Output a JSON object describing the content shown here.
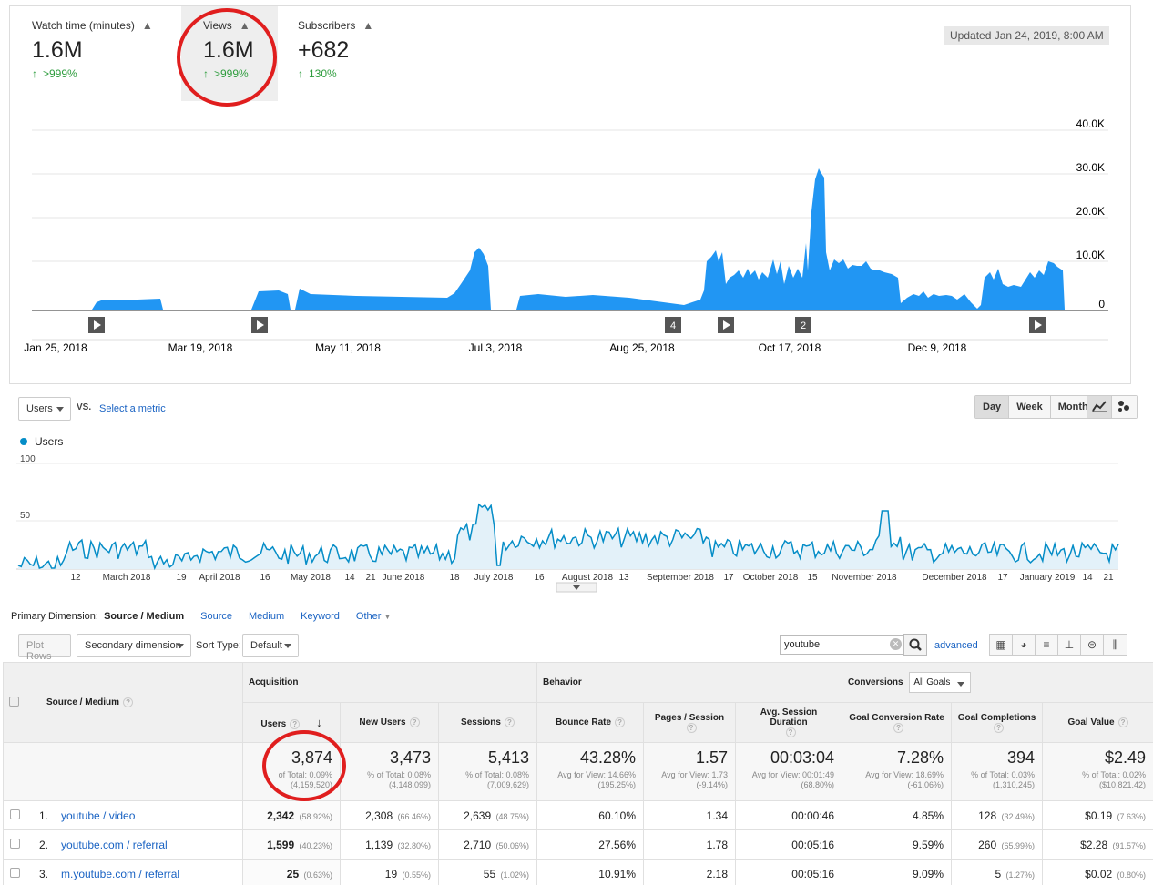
{
  "yt": {
    "metrics": [
      {
        "label": "Watch time (minutes)",
        "value": "1.6M",
        "change": ">999%"
      },
      {
        "label": "Views",
        "value": "1.6M",
        "change": ">999%"
      },
      {
        "label": "Subscribers",
        "value": "+682",
        "change": "130%"
      }
    ],
    "updated": "Updated Jan 24, 2019, 8:00 AM",
    "x_labels": [
      "Jan 25, 2018",
      "Mar 19, 2018",
      "May 11, 2018",
      "Jul 3, 2018",
      "Aug 25, 2018",
      "Oct 17, 2018",
      "Dec 9, 2018"
    ],
    "y_labels": [
      "40.0K",
      "30.0K",
      "20.0K",
      "10.0K",
      "0"
    ],
    "markers": [
      "",
      "",
      "4",
      "",
      "2",
      ""
    ],
    "color": "#2196f3"
  },
  "ga": {
    "metric_select": "Users",
    "vs": "VS.",
    "select_metric": "Select a metric",
    "intervals": [
      "Day",
      "Week",
      "Month"
    ],
    "active_interval": "Day",
    "legend": "Users",
    "y_labels": [
      "100",
      "50"
    ],
    "x_labels": [
      "12",
      "March 2018",
      "19",
      "April 2018",
      "16",
      "May 2018",
      "14",
      "21",
      "June 2018",
      "18",
      "July 2018",
      "16",
      "August 2018",
      "13",
      "September 2018",
      "17",
      "October 2018",
      "15",
      "November 2018",
      "December 2018",
      "17",
      "January 2019",
      "14",
      "21"
    ],
    "line_color": "#058dc7",
    "fill_color": "#e3f1f9"
  },
  "dims": {
    "label": "Primary Dimension:",
    "active": "Source / Medium",
    "others": [
      "Source",
      "Medium",
      "Keyword",
      "Other"
    ]
  },
  "toolbar": {
    "plot_rows": "Plot Rows",
    "secondary": "Secondary dimension",
    "sort_label": "Sort Type:",
    "sort_value": "Default",
    "search_value": "youtube",
    "advanced": "advanced"
  },
  "table": {
    "dim_header": "Source / Medium",
    "groups": {
      "acquisition": "Acquisition",
      "behavior": "Behavior",
      "conversions": "Conversions",
      "goals": "All Goals"
    },
    "columns": [
      "Users",
      "New Users",
      "Sessions",
      "Bounce Rate",
      "Pages / Session",
      "Avg. Session Duration",
      "Goal Conversion Rate",
      "Goal Completions",
      "Goal Value"
    ],
    "totals": [
      {
        "value": "3,874",
        "sub1": "of Total: 0.09%",
        "sub2": "(4,159,520)"
      },
      {
        "value": "3,473",
        "sub1": "% of Total: 0.08%",
        "sub2": "(4,148,099)"
      },
      {
        "value": "5,413",
        "sub1": "% of Total: 0.08%",
        "sub2": "(7,009,629)"
      },
      {
        "value": "43.28%",
        "sub1": "Avg for View: 14.66%",
        "sub2": "(195.25%)"
      },
      {
        "value": "1.57",
        "sub1": "Avg for View: 1.73",
        "sub2": "(-9.14%)"
      },
      {
        "value": "00:03:04",
        "sub1": "Avg for View: 00:01:49",
        "sub2": "(68.80%)"
      },
      {
        "value": "7.28%",
        "sub1": "Avg for View: 18.69%",
        "sub2": "(-61.06%)"
      },
      {
        "value": "394",
        "sub1": "% of Total: 0.03%",
        "sub2": "(1,310,245)"
      },
      {
        "value": "$2.49",
        "sub1": "% of Total: 0.02%",
        "sub2": "($10,821.42)"
      }
    ],
    "rows": [
      {
        "idx": "1.",
        "name": "youtube / video",
        "users": "2,342",
        "users_pct": "(58.92%)",
        "new": "2,308",
        "new_pct": "(66.46%)",
        "sessions": "2,639",
        "sessions_pct": "(48.75%)",
        "bounce": "60.10%",
        "pages": "1.34",
        "dur": "00:00:46",
        "gcr": "4.85%",
        "gc": "128",
        "gc_pct": "(32.49%)",
        "gv": "$0.19",
        "gv_pct": "(7.63%)"
      },
      {
        "idx": "2.",
        "name": "youtube.com / referral",
        "users": "1,599",
        "users_pct": "(40.23%)",
        "new": "1,139",
        "new_pct": "(32.80%)",
        "sessions": "2,710",
        "sessions_pct": "(50.06%)",
        "bounce": "27.56%",
        "pages": "1.78",
        "dur": "00:05:16",
        "gcr": "9.59%",
        "gc": "260",
        "gc_pct": "(65.99%)",
        "gv": "$2.28",
        "gv_pct": "(91.57%)"
      },
      {
        "idx": "3.",
        "name": "m.youtube.com / referral",
        "users": "25",
        "users_pct": "(0.63%)",
        "new": "19",
        "new_pct": "(0.55%)",
        "sessions": "55",
        "sessions_pct": "(1.02%)",
        "bounce": "10.91%",
        "pages": "2.18",
        "dur": "00:05:16",
        "gcr": "9.09%",
        "gc": "5",
        "gc_pct": "(1.27%)",
        "gv": "$0.02",
        "gv_pct": "(0.80%)"
      }
    ]
  }
}
